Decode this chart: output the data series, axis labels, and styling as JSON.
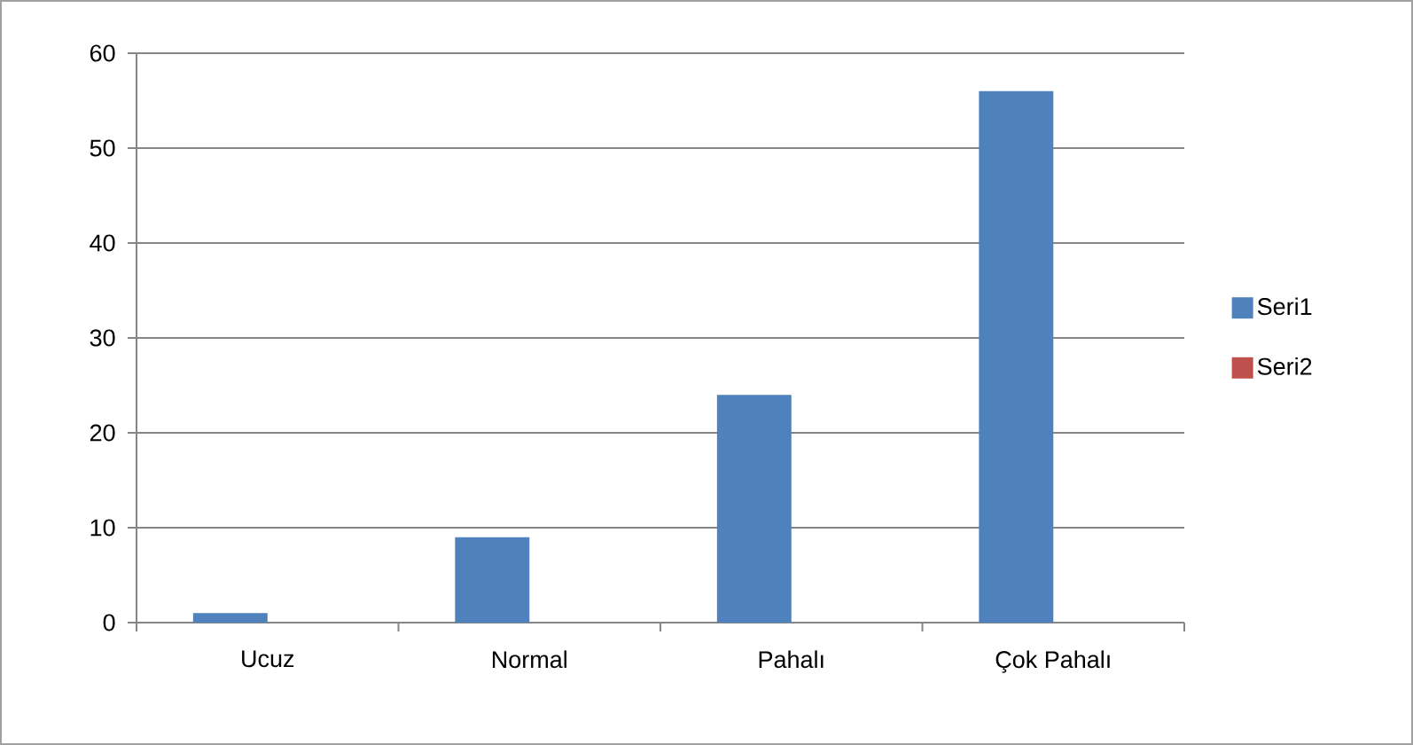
{
  "chart_data": {
    "type": "bar",
    "categories": [
      "Ucuz",
      "Normal",
      "Pahalı",
      "Çok Pahalı"
    ],
    "series": [
      {
        "name": "Seri1",
        "color": "#4f81bd",
        "values": [
          1,
          9,
          24,
          56
        ]
      },
      {
        "name": "Seri2",
        "color": "#c0504d",
        "values": [
          null,
          null,
          null,
          null
        ]
      }
    ],
    "ylim": [
      0,
      60
    ],
    "yticks": [
      0,
      10,
      20,
      30,
      40,
      50,
      60
    ],
    "grid": "y",
    "legend": "right"
  }
}
